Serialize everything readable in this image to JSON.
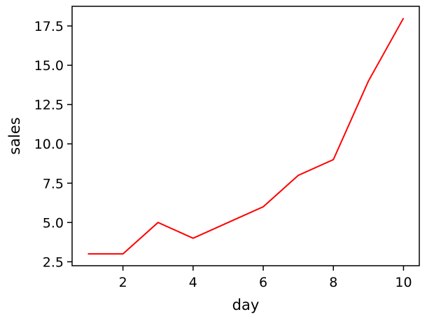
{
  "chart_data": {
    "type": "line",
    "title": "",
    "xlabel": "day",
    "ylabel": "sales",
    "x": [
      1,
      2,
      3,
      4,
      5,
      6,
      7,
      8,
      9,
      10
    ],
    "series": [
      {
        "values": [
          3,
          3,
          5,
          4,
          5,
          6,
          8,
          9,
          14,
          18
        ],
        "color": "#ff0000"
      }
    ],
    "xlim": [
      0.55,
      10.45
    ],
    "ylim": [
      2.25,
      18.75
    ],
    "xticks": [
      2,
      4,
      6,
      8,
      10
    ],
    "xtick_labels": [
      "2",
      "4",
      "6",
      "8",
      "10"
    ],
    "yticks": [
      2.5,
      5.0,
      7.5,
      10.0,
      12.5,
      15.0,
      17.5
    ],
    "ytick_labels": [
      "2.5",
      "5.0",
      "7.5",
      "10.0",
      "12.5",
      "15.0",
      "17.5"
    ],
    "grid": false,
    "legend": "none"
  }
}
